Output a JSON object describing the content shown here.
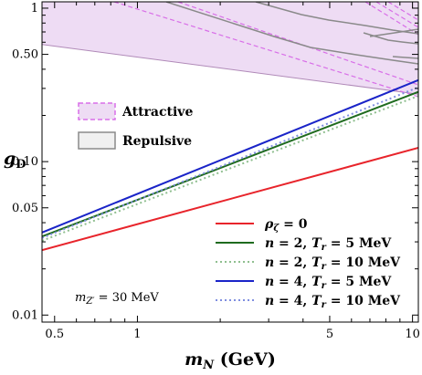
{
  "chart_data": {
    "type": "line",
    "title": "",
    "xlabel": "m_N (GeV)",
    "ylabel": "g_D",
    "x_scale": "log",
    "y_scale": "log",
    "xlim": [
      0.45,
      10.5
    ],
    "ylim": [
      0.009,
      1.1
    ],
    "x_ticks": [
      {
        "value": 0.5,
        "label": "0.5"
      },
      {
        "value": 1,
        "label": "1"
      },
      {
        "value": 5,
        "label": "5"
      },
      {
        "value": 10,
        "label": "10"
      }
    ],
    "y_ticks": [
      {
        "value": 0.01,
        "label": "0.01"
      },
      {
        "value": 0.05,
        "label": "0.05"
      },
      {
        "value": 0.1,
        "label": "0.10"
      },
      {
        "value": 0.5,
        "label": "0.50"
      },
      {
        "value": 1,
        "label": "1"
      }
    ],
    "series": [
      {
        "name": "ρ_ζ = 0",
        "color": "#e8242b",
        "dash": "solid",
        "x": [
          0.45,
          10.5
        ],
        "y": [
          0.0265,
          0.123
        ]
      },
      {
        "name": "n = 2, T_r = 5 MeV",
        "color": "#1f6b1f",
        "dash": "solid",
        "x": [
          0.45,
          10.5
        ],
        "y": [
          0.0325,
          0.285
        ]
      },
      {
        "name": "n = 2, T_r = 10 MeV",
        "color": "#8fbf8f",
        "dash": "dotted",
        "x": [
          0.45,
          10.5
        ],
        "y": [
          0.0305,
          0.268
        ]
      },
      {
        "name": "n = 4, T_r = 5 MeV",
        "color": "#1a24c8",
        "dash": "solid",
        "x": [
          0.45,
          10.5
        ],
        "y": [
          0.0345,
          0.34
        ]
      },
      {
        "name": "n = 4, T_r = 10 MeV",
        "color": "#7f8ee0",
        "dash": "dotted",
        "x": [
          0.45,
          10.5
        ],
        "y": [
          0.0318,
          0.305
        ]
      }
    ],
    "regions": [
      {
        "name": "Attractive",
        "style": "dashed",
        "edge_color": "#d86ee8",
        "fill_color": "#eedcf4",
        "boundary": {
          "x": [
            0.45,
            10.5
          ],
          "y": [
            0.58,
            0.275
          ]
        }
      },
      {
        "name": "Repulsive",
        "style": "solid",
        "edge_color": "#8a8a8a"
      }
    ],
    "annotation": "m_{Z'} = 30 MeV",
    "legend": {
      "regions_placement": "upper-left",
      "lines_placement": "lower-right",
      "entries": [
        {
          "label": "ρ_ζ = 0"
        },
        {
          "label": "n = 2, T_r = 5 MeV"
        },
        {
          "label": "n = 2, T_r = 10 MeV"
        },
        {
          "label": "n = 4, T_r = 5 MeV"
        },
        {
          "label": "n = 4, T_r = 10 MeV"
        }
      ]
    },
    "grid": false
  },
  "colors": {
    "axis": "#000000",
    "attractive_fill": "#eedcf4",
    "attractive_edge": "#d86ee8",
    "repulsive_edge": "#8a8a8a"
  }
}
